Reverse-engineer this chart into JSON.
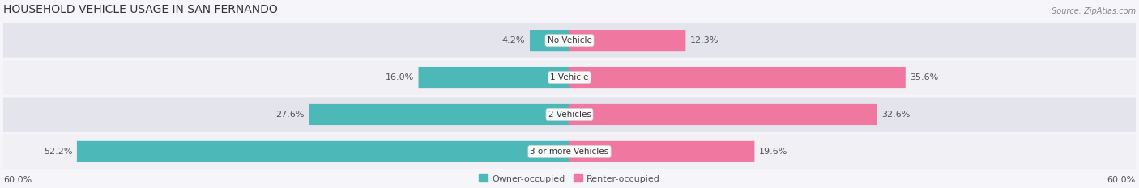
{
  "title": "HOUSEHOLD VEHICLE USAGE IN SAN FERNANDO",
  "source": "Source: ZipAtlas.com",
  "categories": [
    "No Vehicle",
    "1 Vehicle",
    "2 Vehicles",
    "3 or more Vehicles"
  ],
  "owner_values": [
    4.2,
    16.0,
    27.6,
    52.2
  ],
  "renter_values": [
    12.3,
    35.6,
    32.6,
    19.6
  ],
  "owner_color": "#4db8b8",
  "renter_color": "#f078a0",
  "bar_bg_color": "#e8e8ee",
  "row_bg_colors": [
    "#f0f0f5",
    "#e4e4ec"
  ],
  "max_value": 60.0,
  "axis_label_left": "60.0%",
  "axis_label_right": "60.0%",
  "legend_owner": "Owner-occupied",
  "legend_renter": "Renter-occupied",
  "title_fontsize": 10,
  "label_fontsize": 8,
  "category_fontsize": 7.5
}
